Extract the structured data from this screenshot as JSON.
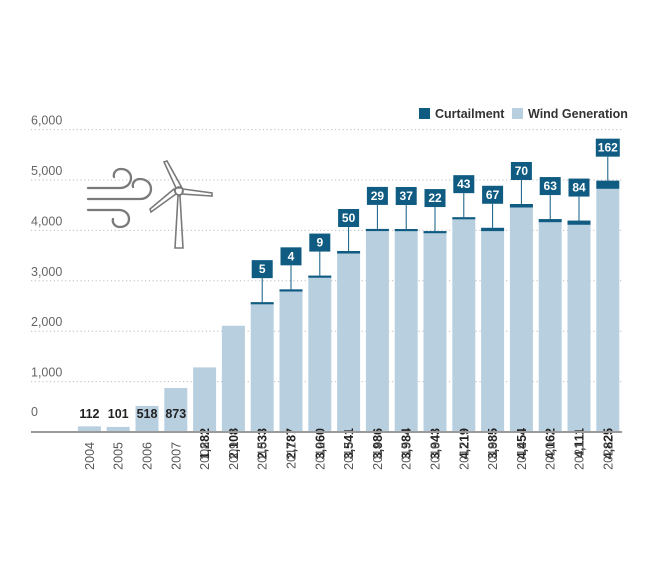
{
  "chart_data": {
    "type": "bar",
    "stacked": true,
    "categories": [
      "2004",
      "2005",
      "2006",
      "2007",
      "2008",
      "2009",
      "2010",
      "2011",
      "2012",
      "2013",
      "2014",
      "2015",
      "2016",
      "2017",
      "2018",
      "2019",
      "2020",
      "2021",
      "2022"
    ],
    "series": [
      {
        "name": "Wind Generation",
        "color": "#b8cfe0",
        "values": [
          112,
          101,
          518,
          873,
          1282,
          2108,
          2533,
          2787,
          3060,
          3541,
          3986,
          3984,
          3943,
          4219,
          3985,
          4454,
          4162,
          4111,
          4825
        ],
        "labels": [
          "112",
          "101",
          "518",
          "873",
          "1,282",
          "2,108",
          "2,533",
          "2,787",
          "3,060",
          "3,541",
          "3,986",
          "3,984",
          "3,943",
          "4,219",
          "3,985",
          "4,454",
          "4,162",
          "4,111",
          "4,825"
        ]
      },
      {
        "name": "Curtailment",
        "color": "#0f5b82",
        "values": [
          null,
          null,
          null,
          null,
          null,
          null,
          5,
          4,
          9,
          50,
          29,
          37,
          22,
          43,
          67,
          70,
          63,
          84,
          162
        ],
        "labels": [
          "",
          "",
          "",
          "",
          "",
          "",
          "5",
          "4",
          "9",
          "50",
          "29",
          "37",
          "22",
          "43",
          "67",
          "70",
          "63",
          "84",
          "162"
        ]
      }
    ],
    "yticks": [
      {
        "value": 0,
        "label": "0"
      },
      {
        "value": 1000,
        "label": "1,000"
      },
      {
        "value": 2000,
        "label": "2,000"
      },
      {
        "value": 3000,
        "label": "3,000"
      },
      {
        "value": 4000,
        "label": "4,000"
      },
      {
        "value": 5000,
        "label": "5,000"
      },
      {
        "value": 6000,
        "label": "6,000"
      }
    ],
    "ylim": [
      0,
      6000
    ],
    "title": "",
    "xlabel": "",
    "ylabel": "",
    "grid": true,
    "legend": {
      "position": "top-right",
      "items": [
        {
          "label": "Curtailment",
          "color": "#0f5b82"
        },
        {
          "label": "Wind Generation",
          "color": "#b8cfe0"
        }
      ]
    }
  },
  "decoration": {
    "icon": "wind-turbine-icon",
    "icon_color": "#7a7a7a"
  },
  "colors": {
    "text": "#222222",
    "axis_text": "#666666",
    "grid": "#bdbdbd",
    "axis": "#9a9a9a"
  }
}
